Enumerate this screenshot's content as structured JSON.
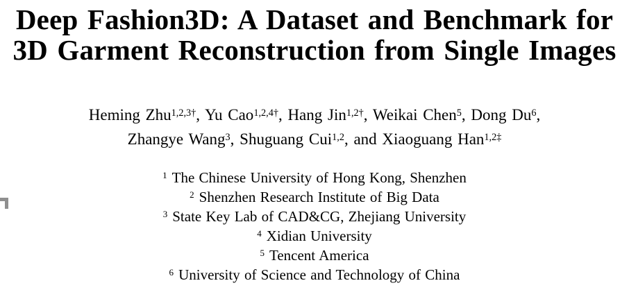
{
  "title": {
    "line1": "Deep Fashion3D: A Dataset and Benchmark for",
    "line2": "3D Garment Reconstruction from Single Images"
  },
  "authors": {
    "line1": [
      {
        "name": "Heming Zhu",
        "sup": "1,2,3†",
        "sep": ", "
      },
      {
        "name": "Yu Cao",
        "sup": "1,2,4†",
        "sep": ", "
      },
      {
        "name": "Hang Jin",
        "sup": "1,2†",
        "sep": ", "
      },
      {
        "name": "Weikai Chen",
        "sup": "5",
        "sep": ", "
      },
      {
        "name": "Dong Du",
        "sup": "6",
        "sep": ","
      }
    ],
    "line2": [
      {
        "name": "Zhangye Wang",
        "sup": "3",
        "sep": ", "
      },
      {
        "name": "Shuguang Cui",
        "sup": "1,2",
        "sep": ", "
      },
      {
        "prefix": "and ",
        "name": "Xiaoguang Han",
        "sup": "1,2‡",
        "sep": ""
      }
    ]
  },
  "affiliations": [
    {
      "marker": "1",
      "text": "The Chinese University of Hong Kong, Shenzhen"
    },
    {
      "marker": "2",
      "text": "Shenzhen Research Institute of Big Data"
    },
    {
      "marker": "3",
      "text": "State Key Lab of CAD&CG, Zhejiang University"
    },
    {
      "marker": "4",
      "text": "Xidian University"
    },
    {
      "marker": "5",
      "text": "Tencent America"
    },
    {
      "marker": "6",
      "text": "University of Science and Technology of China"
    }
  ],
  "colors": {
    "text": "#000000",
    "background": "#ffffff",
    "artifact_gray": "#8f8f8f"
  }
}
